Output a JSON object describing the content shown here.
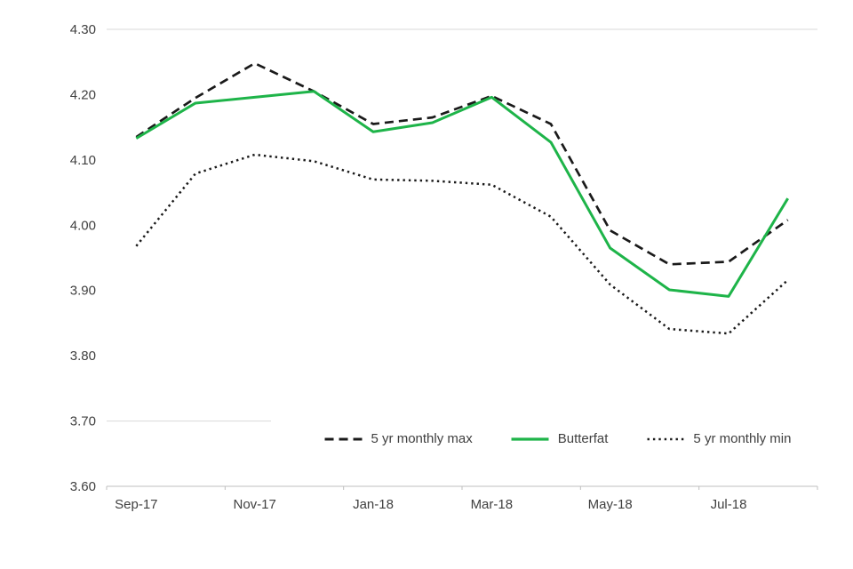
{
  "chart_data": {
    "type": "line",
    "title": "",
    "xlabel": "",
    "ylabel": "",
    "ylim": [
      3.6,
      4.3
    ],
    "grid": "minimal (top border line, partial line at 3.70, bottom axis)",
    "legend_position": "bottom-center",
    "x": [
      "Sep-17",
      "Oct-17",
      "Nov-17",
      "Dec-17",
      "Jan-18",
      "Feb-18",
      "Mar-18",
      "Apr-18",
      "May-18",
      "Jun-18",
      "Jul-18",
      "Aug-18"
    ],
    "x_tick_labels": [
      "Sep-17",
      "Nov-17",
      "Jan-18",
      "Mar-18",
      "May-18",
      "Jul-18"
    ],
    "y_ticks": [
      3.6,
      3.7,
      3.8,
      3.9,
      4.0,
      4.1,
      4.2,
      4.3
    ],
    "y_tick_labels": [
      "3.60",
      "3.70",
      "3.80",
      "3.90",
      "4.00",
      "4.10",
      "4.20",
      "4.30"
    ],
    "series": [
      {
        "name": "5 yr monthly max",
        "style": "dashed",
        "color": "#1a1a1a",
        "values": [
          4.135,
          4.195,
          4.248,
          4.205,
          4.155,
          4.165,
          4.198,
          4.155,
          3.992,
          3.94,
          3.944,
          4.008
        ]
      },
      {
        "name": "Butterfat",
        "style": "solid",
        "color": "#1eb449",
        "values": [
          4.133,
          4.187,
          4.196,
          4.205,
          4.143,
          4.157,
          4.196,
          4.127,
          3.965,
          3.901,
          3.891,
          4.041
        ]
      },
      {
        "name": "5 yr monthly min",
        "style": "dotted",
        "color": "#1a1a1a",
        "values": [
          3.968,
          4.079,
          4.108,
          4.098,
          4.07,
          4.068,
          4.062,
          4.013,
          3.909,
          3.841,
          3.834,
          3.916
        ]
      }
    ]
  }
}
